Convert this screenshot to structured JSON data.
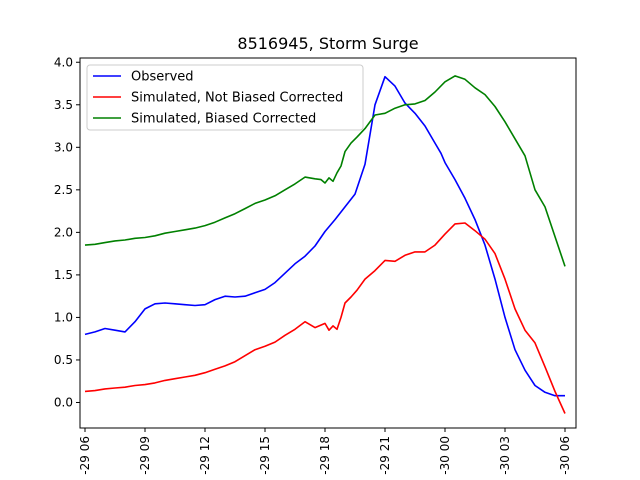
{
  "chart_data": {
    "type": "line",
    "title": "8516945, Storm Surge",
    "xlabel": "",
    "ylabel": "",
    "ylim": [
      -0.3,
      4.05
    ],
    "xlim": [
      5.75,
      30.55
    ],
    "grid": false,
    "legend_position": "top-left",
    "x_tick_values": [
      6,
      9,
      12,
      15,
      18,
      21,
      24,
      27,
      30
    ],
    "x_tick_labels": [
      "-29 06",
      "-29 09",
      "-29 12",
      "-29 15",
      "-29 18",
      "-29 21",
      "-30 00",
      "-30 03",
      "-30 06"
    ],
    "y_tick_values": [
      0.0,
      0.5,
      1.0,
      1.5,
      2.0,
      2.5,
      3.0,
      3.5,
      4.0
    ],
    "y_tick_labels": [
      "0.0",
      "0.5",
      "1.0",
      "1.5",
      "2.0",
      "2.5",
      "3.0",
      "3.5",
      "4.0"
    ],
    "series": [
      {
        "name": "Observed",
        "color": "#0000ff",
        "x": [
          6.0,
          6.5,
          7.0,
          7.5,
          8.0,
          8.5,
          9.0,
          9.5,
          10.0,
          10.5,
          11.0,
          11.5,
          12.0,
          12.5,
          13.0,
          13.5,
          14.0,
          14.5,
          15.0,
          15.5,
          16.0,
          16.5,
          17.0,
          17.5,
          18.0,
          18.5,
          19.0,
          19.5,
          20.0,
          20.5,
          21.0,
          21.5,
          22.0,
          22.5,
          23.0,
          23.5,
          23.8,
          24.0,
          24.5,
          25.0,
          25.5,
          26.0,
          26.5,
          27.0,
          27.5,
          28.0,
          28.5,
          29.0,
          29.5,
          30.0
        ],
        "y": [
          0.8,
          0.83,
          0.87,
          0.85,
          0.83,
          0.95,
          1.1,
          1.16,
          1.17,
          1.16,
          1.15,
          1.14,
          1.15,
          1.21,
          1.25,
          1.24,
          1.25,
          1.29,
          1.33,
          1.41,
          1.52,
          1.63,
          1.72,
          1.84,
          2.01,
          2.15,
          2.3,
          2.45,
          2.8,
          3.5,
          3.83,
          3.72,
          3.52,
          3.4,
          3.25,
          3.05,
          2.93,
          2.82,
          2.62,
          2.4,
          2.15,
          1.85,
          1.45,
          1.0,
          0.62,
          0.38,
          0.2,
          0.12,
          0.08,
          0.08
        ]
      },
      {
        "name": "Simulated, Not Biased Corrected",
        "color": "#ff0000",
        "x": [
          6.0,
          6.5,
          7.0,
          7.5,
          8.0,
          8.5,
          9.0,
          9.5,
          10.0,
          10.5,
          11.0,
          11.5,
          12.0,
          12.5,
          13.0,
          13.5,
          14.0,
          14.5,
          15.0,
          15.5,
          16.0,
          16.5,
          17.0,
          17.5,
          18.0,
          18.2,
          18.4,
          18.6,
          18.8,
          19.0,
          19.3,
          19.6,
          20.0,
          20.5,
          21.0,
          21.5,
          22.0,
          22.5,
          23.0,
          23.5,
          24.0,
          24.5,
          25.0,
          25.5,
          26.0,
          26.5,
          27.0,
          27.5,
          28.0,
          28.5,
          29.0,
          29.5,
          30.0
        ],
        "y": [
          0.13,
          0.14,
          0.16,
          0.17,
          0.18,
          0.2,
          0.21,
          0.23,
          0.26,
          0.28,
          0.3,
          0.32,
          0.35,
          0.39,
          0.43,
          0.48,
          0.55,
          0.62,
          0.66,
          0.71,
          0.79,
          0.86,
          0.95,
          0.88,
          0.93,
          0.85,
          0.9,
          0.86,
          1.0,
          1.17,
          1.24,
          1.32,
          1.45,
          1.55,
          1.67,
          1.66,
          1.73,
          1.77,
          1.77,
          1.85,
          1.98,
          2.1,
          2.11,
          2.02,
          1.92,
          1.75,
          1.45,
          1.1,
          0.85,
          0.7,
          0.42,
          0.13,
          -0.13
        ]
      },
      {
        "name": "Simulated, Biased Corrected",
        "color": "#008000",
        "x": [
          6.0,
          6.5,
          7.0,
          7.5,
          8.0,
          8.5,
          9.0,
          9.5,
          10.0,
          10.5,
          11.0,
          11.5,
          12.0,
          12.5,
          13.0,
          13.5,
          14.0,
          14.5,
          15.0,
          15.5,
          16.0,
          16.5,
          17.0,
          17.5,
          17.8,
          18.0,
          18.2,
          18.4,
          18.6,
          18.8,
          19.0,
          19.3,
          19.6,
          20.0,
          20.5,
          21.0,
          21.5,
          22.0,
          22.5,
          23.0,
          23.5,
          24.0,
          24.5,
          25.0,
          25.5,
          26.0,
          26.5,
          27.0,
          27.5,
          28.0,
          28.5,
          29.0,
          29.5,
          30.0
        ],
        "y": [
          1.85,
          1.86,
          1.88,
          1.9,
          1.91,
          1.93,
          1.94,
          1.96,
          1.99,
          2.01,
          2.03,
          2.05,
          2.08,
          2.12,
          2.17,
          2.22,
          2.28,
          2.34,
          2.38,
          2.43,
          2.5,
          2.57,
          2.65,
          2.63,
          2.62,
          2.58,
          2.64,
          2.6,
          2.7,
          2.78,
          2.95,
          3.05,
          3.12,
          3.22,
          3.38,
          3.4,
          3.46,
          3.5,
          3.51,
          3.55,
          3.65,
          3.77,
          3.84,
          3.8,
          3.7,
          3.62,
          3.48,
          3.3,
          3.1,
          2.9,
          2.5,
          2.3,
          1.95,
          1.6
        ]
      }
    ]
  }
}
